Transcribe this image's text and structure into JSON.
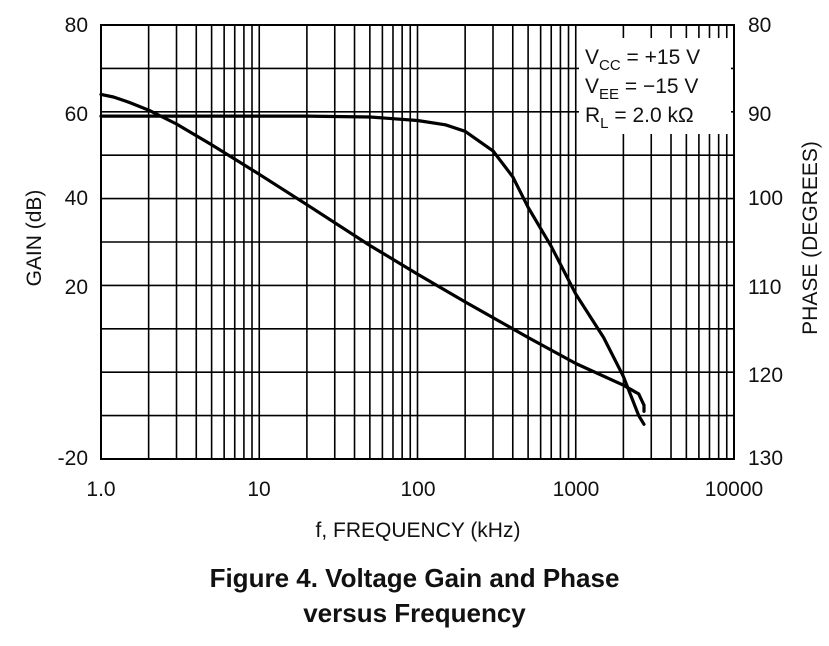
{
  "chart_data": {
    "type": "line",
    "title": "",
    "xlabel": "f, FREQUENCY (kHz)",
    "ylabel_left": "GAIN (dB)",
    "ylabel_right": "PHASE (DEGREES)",
    "x_scale": "log",
    "xlim": [
      1,
      10000
    ],
    "ylim_left": [
      -20,
      80
    ],
    "ylim_right": [
      80,
      130
    ],
    "right_axis_inverted": true,
    "grid": true,
    "x_ticks": [
      "1.0",
      "10",
      "100",
      "1000",
      "10000"
    ],
    "y_left_ticks": [
      "80",
      "60",
      "40",
      "20",
      "-20"
    ],
    "y_right_ticks": [
      "80",
      "90",
      "100",
      "110",
      "120",
      "130"
    ],
    "legend_position": "top-right",
    "legend_lines": [
      {
        "main": "V",
        "sub": "CC",
        "rest": " = +15 V"
      },
      {
        "main": "V",
        "sub": "EE",
        "rest": " = −15 V"
      },
      {
        "main": "R",
        "sub": "L",
        "rest": " = 2.0 kΩ"
      }
    ],
    "series": [
      {
        "axis": "left",
        "x": [
          1,
          2,
          5,
          10,
          20,
          50,
          100,
          150,
          200,
          300,
          400,
          500,
          700,
          1000,
          1500,
          2000,
          2500,
          2700
        ],
        "y": [
          59,
          59,
          59,
          59,
          59,
          58.8,
          58,
          57,
          55.5,
          51,
          45,
          38,
          29,
          18,
          8,
          -1,
          -10,
          -12
        ]
      },
      {
        "axis": "right",
        "x": [
          1,
          1.2,
          1.5,
          2,
          3,
          5,
          10,
          20,
          50,
          100,
          200,
          500,
          1000,
          2000,
          2500,
          2700,
          2700
        ],
        "y": [
          88,
          88.3,
          88.9,
          89.8,
          91.4,
          93.8,
          97.2,
          100.7,
          105.4,
          108.7,
          111.9,
          116,
          119,
          121.5,
          122.5,
          123.8,
          124.5
        ]
      }
    ]
  },
  "caption": {
    "line1": "Figure 4. Voltage Gain and Phase",
    "line2": "versus Frequency"
  }
}
